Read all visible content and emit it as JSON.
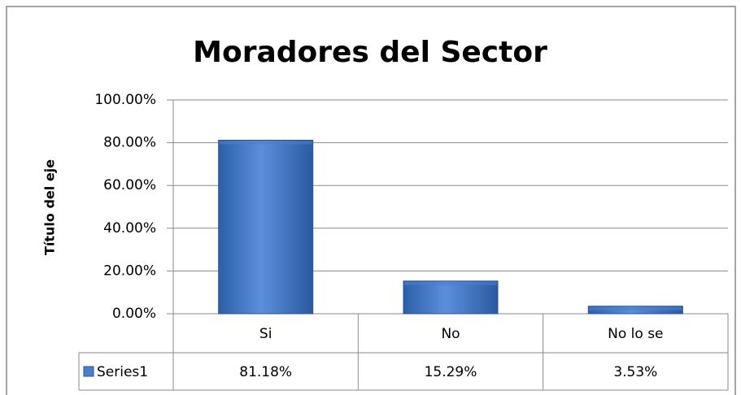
{
  "chart_data": {
    "type": "bar",
    "title": "Moradores del Sector",
    "y_axis_label": "Título del eje",
    "categories": [
      "Si",
      "No",
      "No lo se"
    ],
    "series": [
      {
        "name": "Series1",
        "color": "#4a7fd0",
        "values": [
          81.18,
          15.29,
          3.53
        ],
        "value_labels": [
          "81.18%",
          "15.29%",
          "3.53%"
        ]
      }
    ],
    "ylim": [
      0,
      100
    ],
    "yticks": [
      {
        "value": 0,
        "label": "0.00%"
      },
      {
        "value": 20,
        "label": "20.00%"
      },
      {
        "value": 40,
        "label": "40.00%"
      },
      {
        "value": 60,
        "label": "60.00%"
      },
      {
        "value": 80,
        "label": "80.00%"
      },
      {
        "value": 100,
        "label": "100.00%"
      }
    ],
    "grid": true,
    "data_table": true
  }
}
